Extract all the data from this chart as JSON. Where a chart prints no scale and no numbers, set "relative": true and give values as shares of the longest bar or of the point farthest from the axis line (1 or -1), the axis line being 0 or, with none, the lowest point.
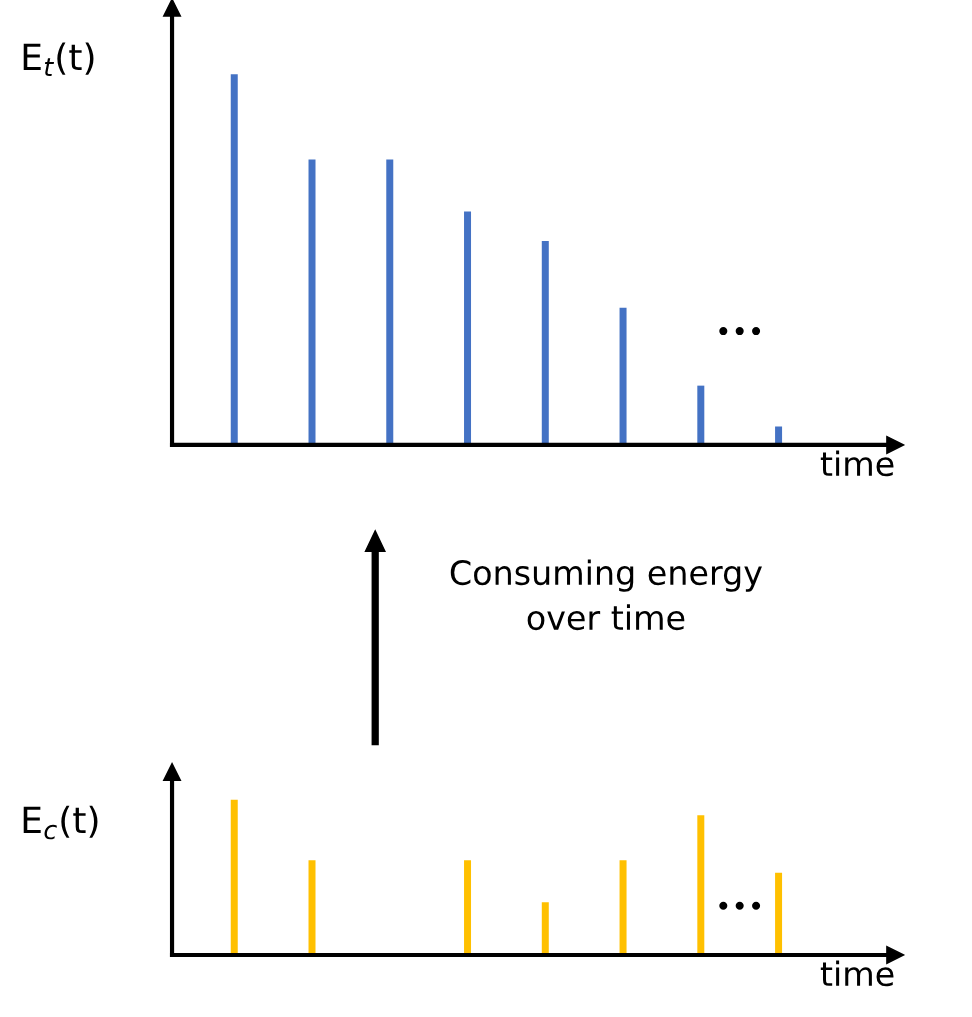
{
  "chart_data": [
    {
      "type": "bar",
      "relative": true,
      "ylabel": "E$_{t}$(t)",
      "xlabel": "time",
      "tick_labels": false,
      "categories": [
        null,
        null,
        null,
        null,
        null,
        null,
        null,
        null
      ],
      "series": [
        {
          "color": "#4472c4",
          "values": [
            1,
            0.77,
            0.77,
            0.63,
            0.55,
            0.37,
            0.16,
            0.05
          ]
        }
      ],
      "annotations": [
        "•••"
      ]
    },
    {
      "type": "bar",
      "relative": true,
      "ylabel": "E$_{c}$(t)",
      "xlabel": "time",
      "tick_labels": false,
      "categories": [
        null,
        null,
        null,
        null,
        null,
        null,
        null,
        null
      ],
      "series": [
        {
          "color": "#ffc000",
          "values": [
            1,
            0.61,
            null,
            0.61,
            0.34,
            0.61,
            0.9,
            0.53
          ]
        }
      ],
      "annotations": [
        "•••",
        "Consuming energy\nover time"
      ]
    }
  ]
}
